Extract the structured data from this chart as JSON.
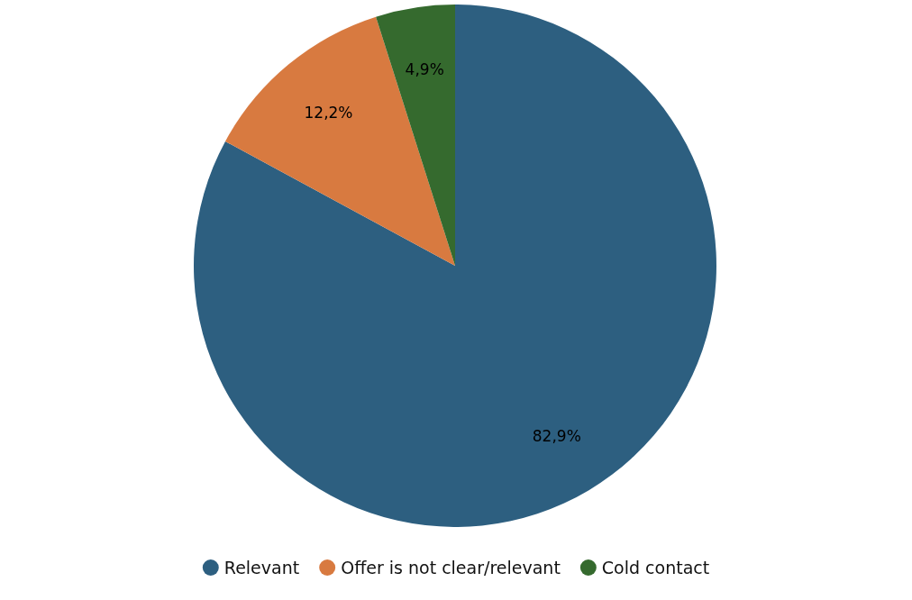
{
  "chart_data": {
    "type": "pie",
    "categories": [
      "Relevant",
      "Offer is not clear/relevant",
      "Cold contact"
    ],
    "values": [
      82.9,
      12.2,
      4.9
    ],
    "colors": [
      "#2d5f80",
      "#d87a40",
      "#356a2e"
    ],
    "value_labels": [
      "82,9%",
      "12,2%",
      "4,9%"
    ],
    "legend": "bottom"
  }
}
